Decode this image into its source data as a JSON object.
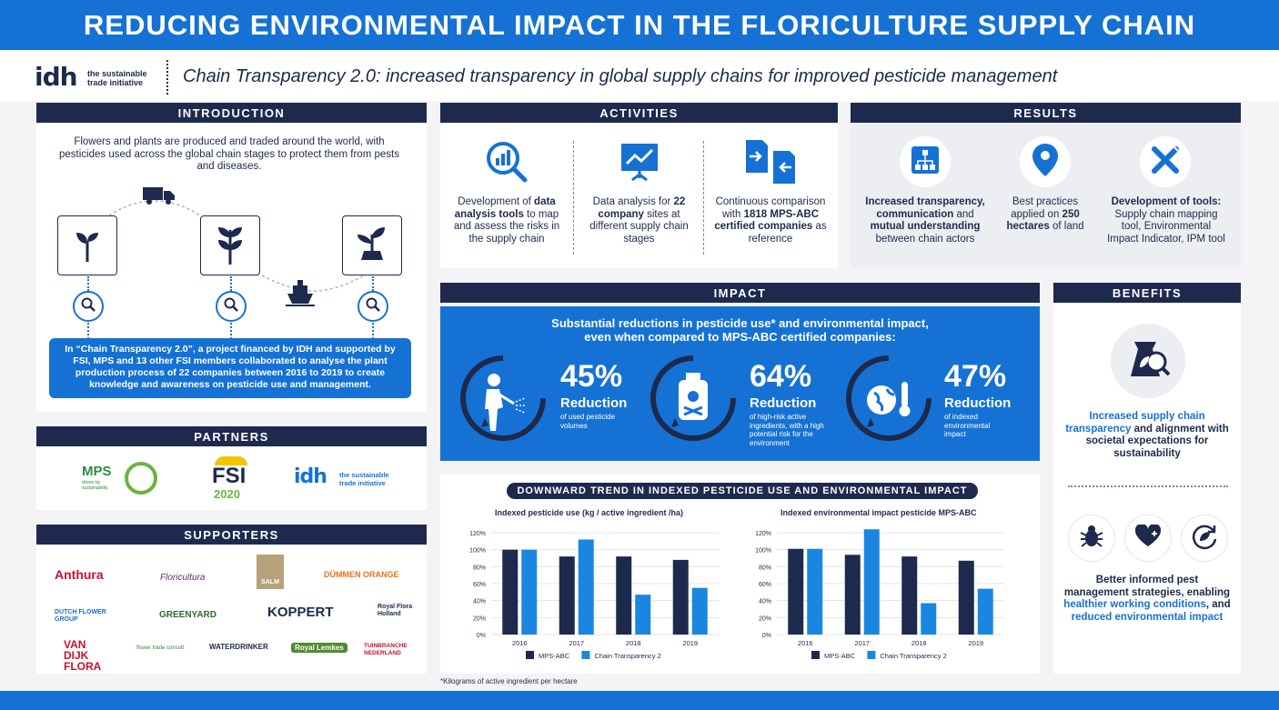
{
  "header": {
    "title": "REDUCING ENVIRONMENTAL IMPACT IN THE FLORICULTURE SUPPLY CHAIN"
  },
  "subheader": {
    "logo_text": "idh",
    "logo_tag_line1": "the sustainable",
    "logo_tag_line2": "trade initiative",
    "subtitle": "Chain Transparency 2.0: increased transparency in global supply chains for improved pesticide management"
  },
  "introduction": {
    "title": "INTRODUCTION",
    "text": "Flowers and plants are produced and traded around the world, with pesticides used across the global chain stages to protect them from pests and diseases.",
    "box_text": "In “Chain Transparency 2.0”, a project financed by IDH and supported by FSI, MPS and 13 other FSI members collaborated to analyse the plant production process of 22 companies between 2016 to 2019 to create knowledge and awareness on pesticide use and management."
  },
  "activities": {
    "title": "ACTIVITIES",
    "items": [
      {
        "icon": "chart-search-icon",
        "pre": "Development of ",
        "bold": "data analysis tools",
        "post": " to map and assess the risks in the supply chain"
      },
      {
        "icon": "presentation-chart-icon",
        "pre": "Data analysis for ",
        "bold": "22 company",
        "post": " sites at different supply chain stages"
      },
      {
        "icon": "compare-documents-icon",
        "pre": "Continuous comparison with ",
        "bold": "1818 MPS-ABC certified companies",
        "post": " as reference"
      }
    ]
  },
  "results": {
    "title": "RESULTS",
    "items": [
      {
        "icon": "hierarchy-icon",
        "bold": "Increased transparency, communication",
        "post": " and ",
        "bold2": "mutual understanding",
        "post2": " between chain actors"
      },
      {
        "icon": "location-pin-icon",
        "pre": "Best practices applied on ",
        "bold": "250 hectares",
        "post": " of land"
      },
      {
        "icon": "tools-icon",
        "bold": "Development of tools:",
        "post": " Supply chain mapping tool, Environmental Impact Indicator, IPM tool"
      }
    ]
  },
  "impact": {
    "title": "IMPACT",
    "headline_line1": "Substantial reductions in pesticide use* and environmental impact,",
    "headline_line2": "even when compared to MPS-ABC certified companies:",
    "stats": [
      {
        "icon": "sprayer-worker-icon",
        "value": "45%",
        "label": "Reduction",
        "desc": "of used pesticide volumes"
      },
      {
        "icon": "poison-bottle-icon",
        "value": "64%",
        "label": "Reduction",
        "desc": "of high-risk active ingredients, with a high potential risk for the environment"
      },
      {
        "icon": "globe-thermometer-icon",
        "value": "47%",
        "label": "Reduction",
        "desc": "of indexed environmental impact"
      }
    ]
  },
  "benefits": {
    "title": "BENEFITS",
    "text1_blue": "Increased supply chain transparency",
    "text1_rest": " and alignment with societal expectations for sustainability",
    "text2_pre": "Better informed pest management strategies, enabling ",
    "text2_blue1": "healthier working conditions",
    "text2_mid": ", and ",
    "text2_blue2": "reduced environmental impact"
  },
  "partners": {
    "title": "PARTNERS",
    "items": [
      "MPS",
      "FSI",
      "2020",
      "idh"
    ],
    "mps_tag": "driven by sustainability"
  },
  "supporters": {
    "title": "SUPPORTERS",
    "items": [
      "Anthura",
      "Floricultura",
      "SALM",
      "DÜMMEN ORANGE",
      "DUTCH FLOWER GROUP",
      "GREENYARD",
      "KOPPERT",
      "Royal Flora Holland",
      "VAN DIJK FLORA",
      "flower trade consult",
      "WATERDRINKER",
      "Royal Lemkes",
      "TUINBRANCHE NEDERLAND"
    ]
  },
  "trend": {
    "title": "DOWNWARD TREND IN INDEXED PESTICIDE USE AND ENVIRONMENTAL IMPACT"
  },
  "chart_data": [
    {
      "type": "bar",
      "title": "Indexed pesticide use (kg / active ingredient /ha)",
      "categories": [
        "2016",
        "2017",
        "2018",
        "2019"
      ],
      "series": [
        {
          "name": "MPS-ABC",
          "values": [
            100,
            92,
            92,
            88
          ],
          "color": "#1d2a4d"
        },
        {
          "name": "Chain Transparency 2",
          "values": [
            100,
            112,
            47,
            55
          ],
          "color": "#1b86e0"
        }
      ],
      "yticks": [
        "0%",
        "20%",
        "40%",
        "60%",
        "80%",
        "100%",
        "120%"
      ],
      "ylim": [
        0,
        120
      ]
    },
    {
      "type": "bar",
      "title": "Indexed environmental impact pesticide MPS-ABC",
      "categories": [
        "2016",
        "2017",
        "2018",
        "2019"
      ],
      "series": [
        {
          "name": "MPS-ABC",
          "values": [
            101,
            94,
            92,
            87
          ],
          "color": "#1d2a4d"
        },
        {
          "name": "Chain Transparency 2",
          "values": [
            101,
            124,
            37,
            54
          ],
          "color": "#1b86e0"
        }
      ],
      "yticks": [
        "0%",
        "20%",
        "40%",
        "60%",
        "80%",
        "100%",
        "120%"
      ],
      "ylim": [
        0,
        120
      ]
    }
  ],
  "footnote": "*Kilograms of active ingredient per hectare"
}
